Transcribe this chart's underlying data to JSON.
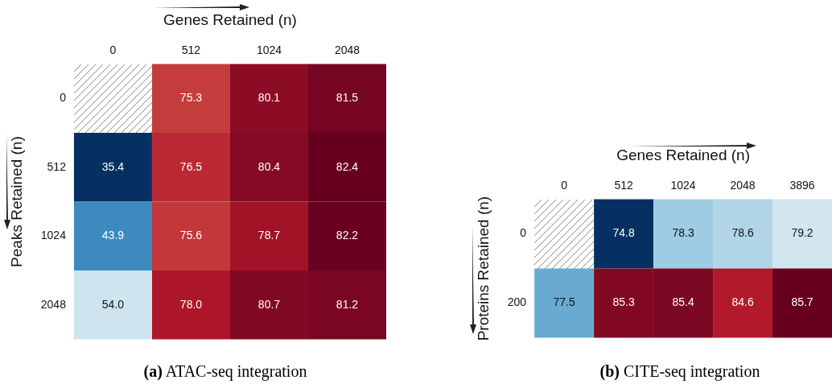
{
  "chart_data": [
    {
      "type": "heatmap",
      "xlabel": "Genes Retained (n)",
      "ylabel": "Peaks Retained (n)",
      "categories": [
        "0",
        "512",
        "1024",
        "2048"
      ],
      "y_categories": [
        "0",
        "512",
        "1024",
        "2048"
      ],
      "cells": [
        [
          null,
          75.3,
          80.1,
          81.5
        ],
        [
          35.4,
          76.5,
          80.4,
          82.4
        ],
        [
          43.9,
          75.6,
          78.7,
          82.2
        ],
        [
          54.0,
          78.0,
          80.7,
          81.2
        ]
      ],
      "cell_labels": [
        [
          null,
          "75.3",
          "80.1",
          "81.5"
        ],
        [
          "35.4",
          "76.5",
          "80.4",
          "82.4"
        ],
        [
          "43.9",
          "75.6",
          "78.7",
          "82.2"
        ],
        [
          "54.0",
          "78.0",
          "80.7",
          "81.2"
        ]
      ],
      "annotations": [
        "(a) ATAC-seq integration"
      ]
    },
    {
      "type": "heatmap",
      "xlabel": "Genes Retained (n)",
      "ylabel": "Proteins Retained (n)",
      "categories": [
        "0",
        "512",
        "1024",
        "2048",
        "3896"
      ],
      "y_categories": [
        "0",
        "200"
      ],
      "cells": [
        [
          null,
          74.8,
          78.3,
          78.6,
          79.2
        ],
        [
          77.5,
          85.3,
          85.4,
          84.6,
          85.7
        ]
      ],
      "cell_labels": [
        [
          null,
          "74.8",
          "78.3",
          "78.6",
          "79.2"
        ],
        [
          "77.5",
          "85.3",
          "85.4",
          "84.6",
          "85.7"
        ]
      ],
      "annotations": [
        "(b) CITE-seq integration"
      ]
    }
  ]
}
